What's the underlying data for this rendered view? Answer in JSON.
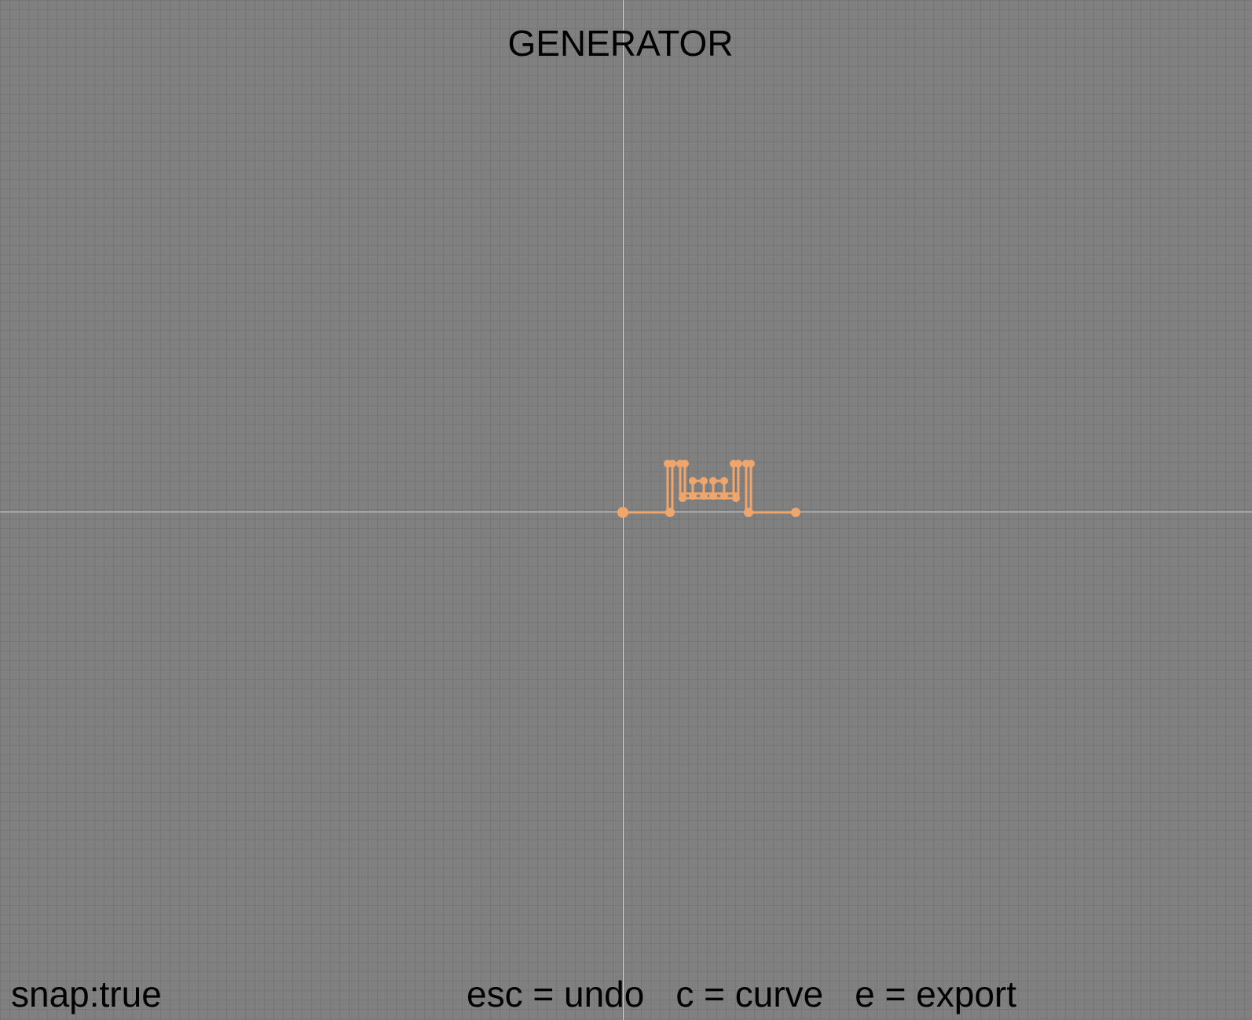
{
  "app": {
    "title": "GENERATOR"
  },
  "status": {
    "snap": "snap:true"
  },
  "shortcuts": [
    "esc = undo",
    "c = curve",
    "e = export"
  ],
  "colors": {
    "background": "#808080",
    "grid": "#6e6e6e",
    "axis": "#d6d6d6",
    "shape": "#f0a56a",
    "text": "#000000"
  }
}
